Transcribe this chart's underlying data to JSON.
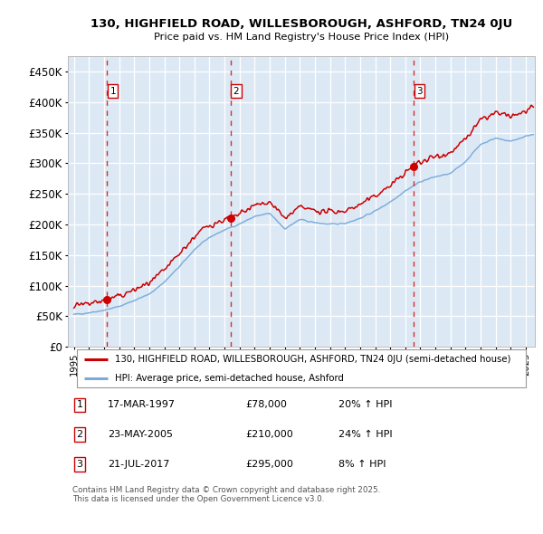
{
  "title_line1": "130, HIGHFIELD ROAD, WILLESBOROUGH, ASHFORD, TN24 0JU",
  "title_line2": "Price paid vs. HM Land Registry's House Price Index (HPI)",
  "ylabel_ticks": [
    "£0",
    "£50K",
    "£100K",
    "£150K",
    "£200K",
    "£250K",
    "£300K",
    "£350K",
    "£400K",
    "£450K"
  ],
  "ytick_vals": [
    0,
    50000,
    100000,
    150000,
    200000,
    250000,
    300000,
    350000,
    400000,
    450000
  ],
  "xlim_start": 1994.6,
  "xlim_end": 2025.6,
  "ylim_min": 0,
  "ylim_max": 475000,
  "sale_dates": [
    1997.21,
    2005.39,
    2017.55
  ],
  "sale_prices": [
    78000,
    210000,
    295000
  ],
  "sale_labels": [
    "1",
    "2",
    "3"
  ],
  "sale_annotations": [
    {
      "label": "1",
      "date": "17-MAR-1997",
      "price": "£78,000",
      "hpi": "20% ↑ HPI"
    },
    {
      "label": "2",
      "date": "23-MAY-2005",
      "price": "£210,000",
      "hpi": "24% ↑ HPI"
    },
    {
      "label": "3",
      "date": "21-JUL-2017",
      "price": "£295,000",
      "hpi": "8% ↑ HPI"
    }
  ],
  "line_sold_color": "#cc0000",
  "line_hpi_color": "#7aabda",
  "vline_color": "#cc0000",
  "bg_color": "#dce9f5",
  "grid_color": "#ffffff",
  "legend_label_sold": "130, HIGHFIELD ROAD, WILLESBOROUGH, ASHFORD, TN24 0JU (semi-detached house)",
  "legend_label_hpi": "HPI: Average price, semi-detached house, Ashford",
  "footer": "Contains HM Land Registry data © Crown copyright and database right 2025.\nThis data is licensed under the Open Government Licence v3.0."
}
